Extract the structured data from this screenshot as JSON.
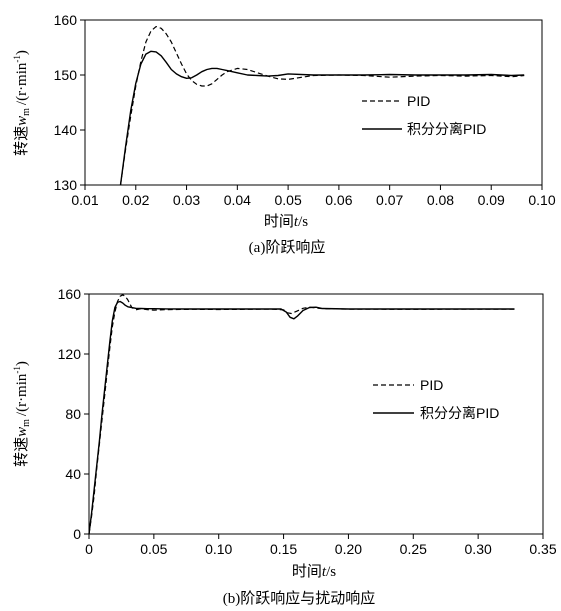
{
  "chart_data": [
    {
      "type": "line",
      "caption": "(a)阶跃响应",
      "xlabel_prefix": "时间",
      "xlabel_var": "t",
      "xlabel_unit": "/s",
      "ylabel_prefix": "转速",
      "ylabel_var": "w",
      "ylabel_sub": "m",
      "ylabel_unit": "/(r·min",
      "ylabel_exp": "-1",
      "ylabel_close": ")",
      "xlim": [
        0.01,
        0.1
      ],
      "ylim": [
        130,
        160
      ],
      "xticks": [
        0.01,
        0.02,
        0.03,
        0.04,
        0.05,
        0.06,
        0.07,
        0.08,
        0.09,
        0.1
      ],
      "xtick_labels": [
        "0.01",
        "0.02",
        "0.03",
        "0.04",
        "0.05",
        "0.06",
        "0.07",
        "0.08",
        "0.09",
        "0.10"
      ],
      "yticks": [
        130,
        140,
        150,
        160
      ],
      "ytick_labels": [
        "130",
        "140",
        "150",
        "160"
      ],
      "grid": false,
      "legend_position": "right",
      "series": [
        {
          "name": "PID",
          "style": "dashed",
          "x": [
            0.017,
            0.018,
            0.019,
            0.02,
            0.021,
            0.022,
            0.023,
            0.024,
            0.025,
            0.026,
            0.027,
            0.028,
            0.029,
            0.03,
            0.031,
            0.032,
            0.033,
            0.034,
            0.035,
            0.036,
            0.037,
            0.038,
            0.04,
            0.042,
            0.044,
            0.046,
            0.048,
            0.05,
            0.052,
            0.055,
            0.06,
            0.065,
            0.07,
            0.075,
            0.08,
            0.085,
            0.09,
            0.094,
            0.0965
          ],
          "y": [
            130.0,
            136.5,
            142.5,
            148.0,
            152.5,
            156.0,
            158.0,
            158.8,
            158.5,
            157.5,
            156.0,
            154.0,
            152.0,
            150.2,
            149.0,
            148.3,
            148.0,
            148.0,
            148.4,
            149.2,
            150.0,
            150.6,
            151.2,
            151.0,
            150.4,
            149.8,
            149.3,
            149.2,
            149.5,
            149.9,
            150.0,
            149.9,
            149.6,
            149.8,
            149.9,
            149.8,
            149.9,
            149.7,
            149.9
          ]
        },
        {
          "name": "积分分离PID",
          "style": "solid",
          "x": [
            0.017,
            0.018,
            0.019,
            0.02,
            0.021,
            0.022,
            0.023,
            0.024,
            0.025,
            0.026,
            0.027,
            0.028,
            0.029,
            0.03,
            0.031,
            0.032,
            0.033,
            0.034,
            0.035,
            0.036,
            0.037,
            0.038,
            0.039,
            0.04,
            0.042,
            0.044,
            0.046,
            0.048,
            0.05,
            0.055,
            0.06,
            0.065,
            0.07,
            0.075,
            0.08,
            0.085,
            0.09,
            0.094,
            0.0965
          ],
          "y": [
            130.0,
            137.0,
            143.5,
            148.5,
            152.0,
            153.8,
            154.3,
            154.2,
            153.5,
            152.3,
            151.0,
            150.2,
            149.7,
            149.4,
            149.5,
            150.0,
            150.6,
            151.0,
            151.2,
            151.2,
            151.0,
            150.8,
            150.6,
            150.4,
            150.0,
            149.9,
            149.8,
            149.9,
            150.2,
            150.0,
            150.0,
            150.0,
            150.1,
            150.0,
            150.0,
            150.0,
            150.1,
            149.9,
            150.0
          ]
        }
      ]
    },
    {
      "type": "line",
      "caption": "(b)阶跃响应与扰动响应",
      "xlabel_prefix": "时间",
      "xlabel_var": "t",
      "xlabel_unit": "/s",
      "ylabel_prefix": "转速",
      "ylabel_var": "w",
      "ylabel_sub": "m",
      "ylabel_unit": "/(r·min",
      "ylabel_exp": "-1",
      "ylabel_close": ")",
      "xlim": [
        0,
        0.35
      ],
      "ylim": [
        0,
        160
      ],
      "xticks": [
        0,
        0.05,
        0.1,
        0.15,
        0.2,
        0.25,
        0.3,
        0.35
      ],
      "xtick_labels": [
        "0",
        "0.05",
        "0.10",
        "0.15",
        "0.20",
        "0.25",
        "0.30",
        "0.35"
      ],
      "yticks": [
        0,
        40,
        80,
        120,
        160
      ],
      "ytick_labels": [
        "0",
        "40",
        "80",
        "120",
        "160"
      ],
      "grid": false,
      "legend_position": "right",
      "series": [
        {
          "name": "PID",
          "style": "dashed",
          "x": [
            0.0,
            0.002,
            0.004,
            0.006,
            0.008,
            0.01,
            0.012,
            0.014,
            0.016,
            0.018,
            0.02,
            0.022,
            0.024,
            0.026,
            0.028,
            0.03,
            0.033,
            0.036,
            0.04,
            0.045,
            0.05,
            0.06,
            0.08,
            0.1,
            0.12,
            0.14,
            0.15,
            0.153,
            0.156,
            0.16,
            0.165,
            0.17,
            0.18,
            0.2,
            0.25,
            0.3,
            0.328
          ],
          "y": [
            0,
            12,
            26,
            44,
            60,
            76,
            92,
            108,
            124,
            138,
            148,
            155,
            158.5,
            159.5,
            158.5,
            156,
            151,
            149.5,
            150.2,
            149.6,
            149.2,
            149.6,
            149.8,
            149.7,
            149.8,
            149.9,
            149.5,
            147.5,
            147.0,
            148.5,
            150.5,
            151.2,
            150.2,
            149.9,
            149.8,
            149.9,
            149.9
          ]
        },
        {
          "name": "积分分离PID",
          "style": "solid",
          "x": [
            0.0,
            0.002,
            0.004,
            0.006,
            0.008,
            0.01,
            0.012,
            0.014,
            0.016,
            0.018,
            0.02,
            0.022,
            0.024,
            0.026,
            0.028,
            0.03,
            0.033,
            0.036,
            0.04,
            0.045,
            0.05,
            0.06,
            0.08,
            0.1,
            0.12,
            0.14,
            0.148,
            0.152,
            0.155,
            0.158,
            0.161,
            0.165,
            0.17,
            0.175,
            0.18,
            0.2,
            0.25,
            0.3,
            0.328
          ],
          "y": [
            0,
            14,
            30,
            46,
            62,
            80,
            96,
            112,
            128,
            142,
            151,
            154.5,
            155,
            154,
            152.5,
            151.5,
            151,
            150.5,
            150.3,
            150.2,
            150.2,
            150.1,
            150.0,
            150.0,
            150.0,
            150.0,
            150.0,
            148.0,
            144.5,
            143.5,
            145.5,
            149.0,
            151.0,
            151.2,
            150.3,
            150.0,
            150.0,
            150.0,
            150.0
          ]
        }
      ]
    }
  ]
}
